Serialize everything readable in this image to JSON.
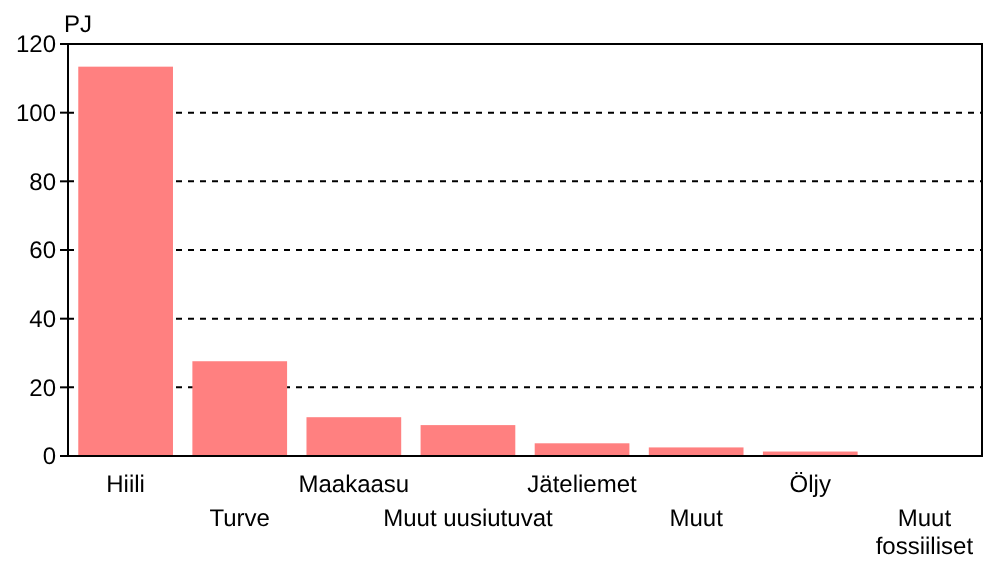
{
  "chart_data": {
    "type": "bar",
    "ylabel": "PJ",
    "categories": [
      "Hiili",
      "Turve",
      "Maakaasu",
      "Muut uusiutuvat",
      "Jäteliemet",
      "Muut",
      "Öljy",
      "Muut fossiiliset"
    ],
    "values": [
      113.4,
      27.6,
      11.3,
      9,
      3.7,
      2.5,
      1.3,
      0
    ],
    "color": "#ff8080",
    "ylim": [
      0,
      120
    ],
    "yticks": [
      0,
      20,
      40,
      60,
      80,
      100,
      120
    ],
    "grid": "y"
  }
}
